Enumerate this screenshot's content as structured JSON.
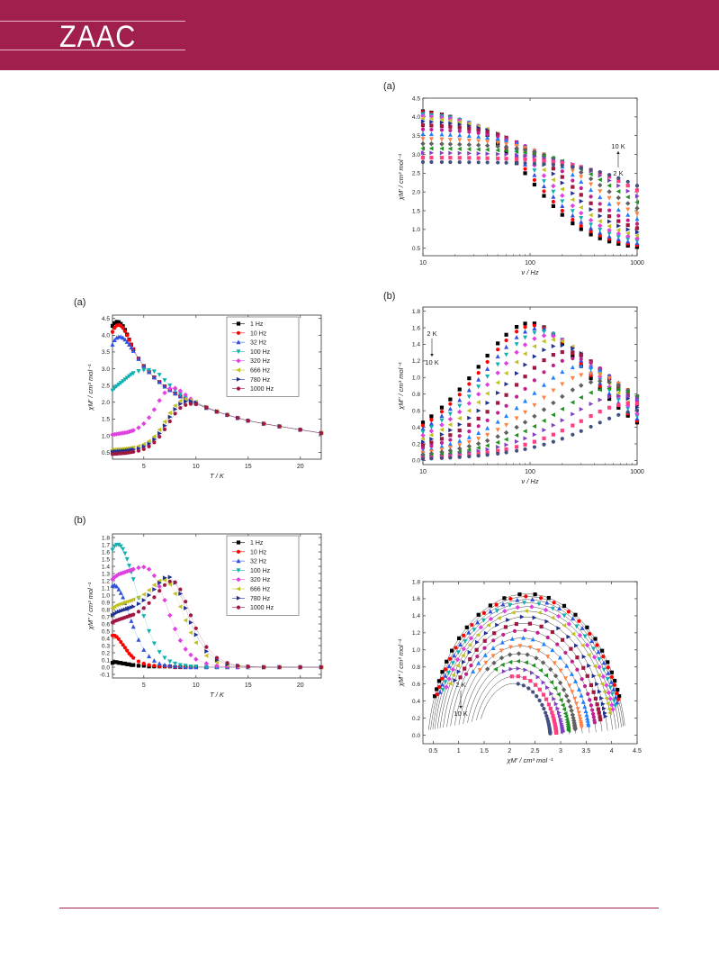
{
  "header": {
    "logo": "ZAAC",
    "color": "#a01f4c"
  },
  "figures": {
    "left_a": {
      "label": "(a)"
    },
    "left_b": {
      "label": "(b)"
    },
    "right_a": {
      "label": "(a)"
    },
    "right_b": {
      "label": "(b)"
    },
    "right_c": {
      "label": ""
    }
  },
  "chart_data": [
    {
      "id": "left_a",
      "type": "scatter",
      "xlabel": "T / K",
      "ylabel": "χM' / cm³ mol⁻¹",
      "xlim": [
        2,
        22
      ],
      "ylim": [
        0.3,
        4.6
      ],
      "xticks": [
        5,
        10,
        15,
        20
      ],
      "yticks": [
        0.5,
        1.0,
        1.5,
        2.0,
        2.5,
        3.0,
        3.5,
        4.0,
        4.5
      ],
      "x": [
        2.0,
        2.2,
        2.4,
        2.6,
        2.8,
        3.0,
        3.2,
        3.4,
        3.6,
        3.8,
        4.0,
        4.5,
        5.0,
        5.5,
        6.0,
        6.5,
        7.0,
        7.5,
        8.0,
        8.5,
        9.0,
        9.5,
        10.0,
        11.0,
        12.0,
        13.0,
        14.0,
        15.0,
        16.5,
        18.0,
        20.0,
        22.0
      ],
      "series": [
        {
          "name": "1 Hz",
          "color": "#000000",
          "marker": "square",
          "values": [
            4.28,
            4.36,
            4.4,
            4.39,
            4.34,
            4.27,
            4.16,
            4.02,
            3.87,
            3.72,
            3.58,
            3.3,
            3.08,
            2.9,
            2.74,
            2.6,
            2.47,
            2.36,
            2.26,
            2.17,
            2.09,
            2.02,
            1.96,
            1.83,
            1.72,
            1.62,
            1.53,
            1.45,
            1.36,
            1.28,
            1.18,
            1.08
          ]
        },
        {
          "name": "10 Hz",
          "color": "#ff0000",
          "marker": "circle",
          "values": [
            4.1,
            4.22,
            4.29,
            4.31,
            4.28,
            4.22,
            4.12,
            4.0,
            3.86,
            3.72,
            3.58,
            3.3,
            3.08,
            2.9,
            2.74,
            2.6,
            2.47,
            2.36,
            2.26,
            2.17,
            2.09,
            2.02,
            1.96,
            1.83,
            1.72,
            1.62,
            1.53,
            1.45,
            1.36,
            1.28,
            1.18,
            1.08
          ]
        },
        {
          "name": "32 Hz",
          "color": "#3050e0",
          "marker": "triangle",
          "values": [
            3.72,
            3.85,
            3.92,
            3.95,
            3.95,
            3.92,
            3.87,
            3.8,
            3.72,
            3.63,
            3.53,
            3.29,
            3.08,
            2.9,
            2.74,
            2.6,
            2.47,
            2.36,
            2.26,
            2.17,
            2.09,
            2.02,
            1.96,
            1.83,
            1.72,
            1.62,
            1.53,
            1.45,
            1.36,
            1.28,
            1.18,
            1.08
          ]
        },
        {
          "name": "100 Hz",
          "color": "#10b0b0",
          "marker": "triangle-down",
          "values": [
            2.35,
            2.42,
            2.48,
            2.53,
            2.58,
            2.63,
            2.68,
            2.73,
            2.78,
            2.83,
            2.87,
            2.93,
            2.96,
            2.96,
            2.92,
            2.82,
            2.66,
            2.5,
            2.36,
            2.24,
            2.13,
            2.04,
            1.97,
            1.83,
            1.72,
            1.62,
            1.53,
            1.45,
            1.36,
            1.28,
            1.18,
            1.08
          ]
        },
        {
          "name": "320 Hz",
          "color": "#e040e0",
          "marker": "diamond",
          "values": [
            1.03,
            1.04,
            1.05,
            1.06,
            1.07,
            1.08,
            1.09,
            1.1,
            1.12,
            1.14,
            1.16,
            1.24,
            1.36,
            1.54,
            1.78,
            2.05,
            2.28,
            2.41,
            2.42,
            2.34,
            2.22,
            2.1,
            2.0,
            1.84,
            1.72,
            1.62,
            1.53,
            1.45,
            1.36,
            1.28,
            1.18,
            1.08
          ]
        },
        {
          "name": "666 Hz",
          "color": "#c0c020",
          "marker": "triangle-left",
          "values": [
            0.58,
            0.59,
            0.59,
            0.6,
            0.6,
            0.61,
            0.61,
            0.62,
            0.63,
            0.64,
            0.65,
            0.69,
            0.75,
            0.84,
            0.98,
            1.18,
            1.42,
            1.68,
            1.9,
            2.04,
            2.09,
            2.07,
            2.01,
            1.86,
            1.73,
            1.62,
            1.53,
            1.45,
            1.36,
            1.28,
            1.18,
            1.08
          ]
        },
        {
          "name": "780 Hz",
          "color": "#203090",
          "marker": "triangle-right",
          "values": [
            0.52,
            0.53,
            0.53,
            0.54,
            0.54,
            0.55,
            0.55,
            0.56,
            0.57,
            0.58,
            0.59,
            0.62,
            0.68,
            0.76,
            0.89,
            1.07,
            1.3,
            1.56,
            1.79,
            1.95,
            2.02,
            2.03,
            1.99,
            1.86,
            1.73,
            1.62,
            1.53,
            1.45,
            1.36,
            1.28,
            1.18,
            1.08
          ]
        },
        {
          "name": "1000 Hz",
          "color": "#a01840",
          "marker": "circle",
          "values": [
            0.45,
            0.46,
            0.46,
            0.47,
            0.47,
            0.48,
            0.48,
            0.49,
            0.5,
            0.51,
            0.52,
            0.55,
            0.6,
            0.68,
            0.8,
            0.97,
            1.19,
            1.43,
            1.66,
            1.83,
            1.92,
            1.95,
            1.94,
            1.84,
            1.72,
            1.62,
            1.53,
            1.45,
            1.36,
            1.28,
            1.18,
            1.08
          ]
        }
      ],
      "legend": "top-right"
    },
    {
      "id": "left_b",
      "type": "scatter",
      "xlabel": "T / K",
      "ylabel": "χM'' / cm³ mol⁻¹",
      "xlim": [
        2,
        22
      ],
      "ylim": [
        -0.15,
        1.85
      ],
      "xticks": [
        5,
        10,
        15,
        20
      ],
      "yticks": [
        -0.1,
        0.0,
        0.1,
        0.2,
        0.3,
        0.4,
        0.5,
        0.6,
        0.7,
        0.8,
        0.9,
        1.0,
        1.1,
        1.2,
        1.3,
        1.4,
        1.5,
        1.6,
        1.7,
        1.8
      ],
      "x": [
        2.0,
        2.2,
        2.4,
        2.6,
        2.8,
        3.0,
        3.2,
        3.4,
        3.6,
        3.8,
        4.0,
        4.5,
        5.0,
        5.5,
        6.0,
        6.5,
        7.0,
        7.5,
        8.0,
        8.5,
        9.0,
        9.5,
        10.0,
        11.0,
        12.0,
        13.0,
        14.0,
        15.0,
        16.5,
        18.0,
        20.0,
        22.0
      ],
      "series": [
        {
          "name": "1 Hz",
          "color": "#000000",
          "marker": "square",
          "values": [
            0.06,
            0.07,
            0.07,
            0.06,
            0.06,
            0.05,
            0.05,
            0.04,
            0.04,
            0.03,
            0.03,
            0.02,
            0.02,
            0.01,
            0.01,
            0.01,
            0.01,
            0.01,
            0.0,
            0.0,
            0.0,
            0.0,
            0.0,
            0.0,
            0.0,
            0.0,
            0.0,
            0.0,
            0.0,
            0.0,
            0.0,
            0.0
          ]
        },
        {
          "name": "10 Hz",
          "color": "#ff0000",
          "marker": "circle",
          "values": [
            0.44,
            0.44,
            0.42,
            0.39,
            0.35,
            0.31,
            0.27,
            0.23,
            0.19,
            0.16,
            0.13,
            0.08,
            0.05,
            0.03,
            0.02,
            0.01,
            0.01,
            0.01,
            0.0,
            0.0,
            0.0,
            0.0,
            0.0,
            0.0,
            0.0,
            0.0,
            0.0,
            0.0,
            0.0,
            0.0,
            0.0,
            0.0
          ]
        },
        {
          "name": "32 Hz",
          "color": "#3050e0",
          "marker": "triangle",
          "values": [
            1.13,
            1.14,
            1.12,
            1.08,
            1.03,
            0.97,
            0.89,
            0.81,
            0.72,
            0.64,
            0.56,
            0.38,
            0.24,
            0.15,
            0.09,
            0.05,
            0.03,
            0.02,
            0.01,
            0.01,
            0.0,
            0.0,
            0.0,
            0.0,
            0.0,
            0.0,
            0.0,
            0.0,
            0.0,
            0.0,
            0.0,
            0.0
          ]
        },
        {
          "name": "100 Hz",
          "color": "#10b0b0",
          "marker": "triangle-down",
          "values": [
            1.63,
            1.68,
            1.7,
            1.7,
            1.68,
            1.64,
            1.58,
            1.5,
            1.41,
            1.32,
            1.22,
            0.96,
            0.71,
            0.5,
            0.33,
            0.21,
            0.13,
            0.08,
            0.05,
            0.03,
            0.02,
            0.01,
            0.01,
            0.0,
            0.0,
            0.0,
            0.0,
            0.0,
            0.0,
            0.0,
            0.0,
            0.0
          ]
        },
        {
          "name": "320 Hz",
          "color": "#e040e0",
          "marker": "diamond",
          "values": [
            1.22,
            1.25,
            1.27,
            1.29,
            1.3,
            1.31,
            1.32,
            1.33,
            1.34,
            1.35,
            1.36,
            1.38,
            1.39,
            1.36,
            1.27,
            1.12,
            0.93,
            0.72,
            0.53,
            0.37,
            0.25,
            0.17,
            0.11,
            0.05,
            0.02,
            0.01,
            0.0,
            0.0,
            0.0,
            0.0,
            0.0,
            0.0
          ]
        },
        {
          "name": "666 Hz",
          "color": "#c0c020",
          "marker": "triangle-left",
          "values": [
            0.82,
            0.84,
            0.86,
            0.87,
            0.88,
            0.89,
            0.9,
            0.91,
            0.92,
            0.93,
            0.94,
            0.97,
            1.01,
            1.07,
            1.14,
            1.2,
            1.21,
            1.15,
            1.02,
            0.84,
            0.65,
            0.48,
            0.34,
            0.16,
            0.07,
            0.03,
            0.01,
            0.0,
            0.0,
            0.0,
            0.0,
            0.0
          ]
        },
        {
          "name": "780 Hz",
          "color": "#203090",
          "marker": "triangle-right",
          "values": [
            0.72,
            0.74,
            0.76,
            0.77,
            0.78,
            0.79,
            0.8,
            0.81,
            0.82,
            0.83,
            0.84,
            0.88,
            0.93,
            1.0,
            1.08,
            1.17,
            1.24,
            1.25,
            1.17,
            1.02,
            0.82,
            0.62,
            0.45,
            0.22,
            0.1,
            0.04,
            0.02,
            0.01,
            0.0,
            0.0,
            0.0,
            0.0
          ]
        },
        {
          "name": "1000 Hz",
          "color": "#a01840",
          "marker": "circle",
          "values": [
            0.62,
            0.64,
            0.65,
            0.66,
            0.67,
            0.68,
            0.69,
            0.7,
            0.71,
            0.72,
            0.73,
            0.77,
            0.82,
            0.89,
            0.97,
            1.06,
            1.14,
            1.19,
            1.18,
            1.08,
            0.91,
            0.72,
            0.54,
            0.28,
            0.13,
            0.06,
            0.02,
            0.01,
            0.0,
            0.0,
            0.0,
            0.0
          ]
        }
      ],
      "legend": "top-right"
    },
    {
      "id": "right_a",
      "type": "scatter",
      "xscale": "log",
      "xlabel": "ν / Hz",
      "ylabel": "χM' / cm³ mol⁻¹",
      "xlim": [
        10,
        1000
      ],
      "ylim": [
        0.3,
        4.5
      ],
      "xticks": [
        10,
        100,
        1000
      ],
      "yticks": [
        0.5,
        1.0,
        1.5,
        2.0,
        2.5,
        3.0,
        3.5,
        4.0,
        4.5
      ],
      "annotation": {
        "top": "10 K",
        "bottom": "2 K"
      },
      "x": [
        10,
        12,
        15,
        18,
        22,
        27,
        33,
        40,
        50,
        60,
        75,
        90,
        110,
        135,
        165,
        200,
        250,
        300,
        370,
        450,
        550,
        670,
        820,
        1000
      ]
    },
    {
      "id": "right_b",
      "type": "scatter",
      "xscale": "log",
      "xlabel": "ν / Hz",
      "ylabel": "χM'' / cm³ mol⁻¹",
      "xlim": [
        10,
        1000
      ],
      "ylim": [
        -0.05,
        1.85
      ],
      "xticks": [
        10,
        100,
        1000
      ],
      "yticks": [
        0.0,
        0.2,
        0.4,
        0.6,
        0.8,
        1.0,
        1.2,
        1.4,
        1.6,
        1.8
      ],
      "annotation": {
        "top": "2 K",
        "bottom": "10 K"
      },
      "x": [
        10,
        12,
        15,
        18,
        22,
        27,
        33,
        40,
        50,
        60,
        75,
        90,
        110,
        135,
        165,
        200,
        250,
        300,
        370,
        450,
        550,
        670,
        820,
        1000
      ]
    },
    {
      "id": "right_c",
      "type": "scatter",
      "xlabel": "χM' / cm³ mol⁻¹",
      "ylabel": "χM'' / cm³ mol⁻¹",
      "xlim": [
        0.3,
        4.5
      ],
      "ylim": [
        -0.1,
        1.8
      ],
      "xticks": [
        0.5,
        1.0,
        1.5,
        2.0,
        2.5,
        3.0,
        3.5,
        4.0,
        4.5
      ],
      "yticks": [
        0.0,
        0.2,
        0.4,
        0.6,
        0.8,
        1.0,
        1.2,
        1.4,
        1.6,
        1.8
      ],
      "annotation": {
        "top": "2 K",
        "bottom": "10 K"
      }
    }
  ],
  "temperature_curves": {
    "T": [
      2.0,
      2.4,
      2.8,
      3.2,
      3.6,
      4.0,
      4.5,
      5.0,
      5.5,
      6.0,
      6.5,
      7.0,
      7.5,
      8.0,
      9.0,
      10.0
    ],
    "chi_s": [
      2.13,
      2.16,
      2.2,
      2.24,
      2.28,
      2.33,
      2.38,
      2.44,
      2.5,
      2.57,
      2.65,
      2.74,
      2.84,
      2.96,
      3.1,
      3.25
    ],
    "chi_t": [
      4.28,
      4.25,
      4.21,
      4.16,
      4.1,
      4.03,
      3.93,
      3.82,
      3.7,
      3.57,
      3.43,
      3.3,
      3.17,
      3.05,
      2.92,
      2.8
    ],
    "chi_s_cole": [
      0.4,
      0.44,
      0.48,
      0.52,
      0.57,
      0.62,
      0.68,
      0.75,
      0.82,
      0.9,
      0.98,
      1.06,
      1.14,
      1.22,
      1.3,
      1.38
    ],
    "nu_peak": [
      100,
      108,
      118,
      130,
      145,
      165,
      190,
      220,
      260,
      310,
      370,
      450,
      560,
      700,
      900,
      1150
    ],
    "colors": [
      "#000000",
      "#ff0000",
      "#3050e0",
      "#10b0b0",
      "#e040e0",
      "#c0c020",
      "#203090",
      "#a01840",
      "#c02090",
      "#2080ff",
      "#ff8040",
      "#606060",
      "#209020",
      "#8040c0",
      "#ff4080",
      "#405080"
    ]
  }
}
